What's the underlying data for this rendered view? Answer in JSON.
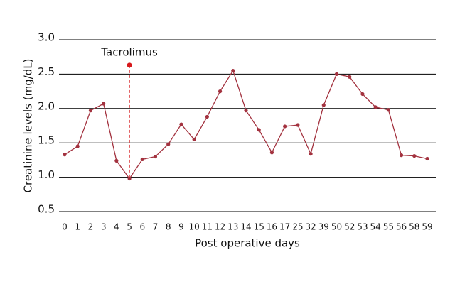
{
  "chart_data": {
    "type": "line",
    "x_label": "Post operative days",
    "y_label": "Creatinine levels (mg/dL)",
    "categories": [
      "0",
      "1",
      "2",
      "3",
      "4",
      "5",
      "6",
      "7",
      "8",
      "9",
      "10",
      "11",
      "12",
      "13",
      "14",
      "15",
      "16",
      "17",
      "25",
      "32",
      "39",
      "50",
      "52",
      "53",
      "54",
      "55",
      "56",
      "58",
      "59"
    ],
    "series": [
      {
        "color": "#a3323f",
        "values": [
          1.33,
          1.45,
          1.97,
          2.07,
          1.24,
          0.98,
          1.26,
          1.3,
          1.48,
          1.77,
          1.55,
          1.88,
          2.25,
          2.55,
          1.97,
          1.69,
          1.36,
          1.74,
          1.76,
          1.34,
          2.05,
          2.5,
          2.46,
          2.21,
          2.02,
          1.98,
          1.32,
          1.31,
          1.27
        ]
      }
    ],
    "ylim": [
      0.5,
      3.0
    ],
    "yticks": [
      0.5,
      {
        "value": 1,
        "label": "1.0"
      },
      1.5,
      {
        "value": 2,
        "label": "2.0"
      },
      2.5,
      {
        "value": 3,
        "label": "3.0"
      }
    ],
    "grid": true,
    "annotations": [
      {
        "text": "Tacrolimus",
        "x": "5",
        "y": 2.63,
        "color": "#d7191c"
      }
    ]
  }
}
